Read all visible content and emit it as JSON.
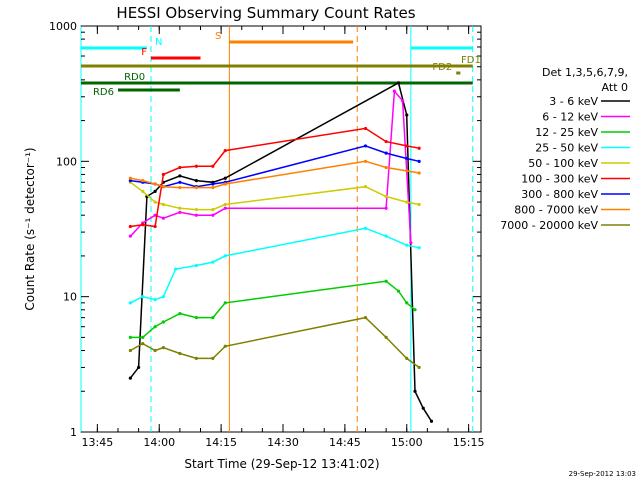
{
  "chart_data": {
    "type": "line",
    "title": "HESSI Observing Summary Count Rates",
    "xlabel": "Start Time (29-Sep-12 13:41:02)",
    "ylabel": "Count Rate (s⁻¹ detector⁻¹)",
    "y_scale": "log",
    "ylim": [
      1,
      1000
    ],
    "xlim": [
      "13:41:02",
      "15:18"
    ],
    "x_ticks": [
      "13:45",
      "14:00",
      "14:15",
      "14:30",
      "14:45",
      "15:00",
      "15:15"
    ],
    "y_ticks": [
      "1",
      "10",
      "100",
      "1000"
    ],
    "footer_stamp": "29-Sep-2012 13:03",
    "legend_header": [
      "Det 1,3,5,6,7,9,",
      "Att 0"
    ],
    "grid": false,
    "legend_position": "right",
    "series": [
      {
        "name": "3 - 6 keV",
        "color": "#000000",
        "x": [
          "13:53",
          "13:55",
          "13:57",
          "13:59",
          "14:01",
          "14:05",
          "14:09",
          "14:13",
          "14:16",
          "14:58",
          "15:00",
          "15:02",
          "15:04",
          "15:06"
        ],
        "values": [
          2.5,
          3,
          55,
          60,
          70,
          78,
          72,
          70,
          75,
          380,
          220,
          2,
          1.5,
          1.2
        ]
      },
      {
        "name": "6 - 12 keV",
        "color": "#ff00ff",
        "x": [
          "13:53",
          "13:56",
          "13:59",
          "14:01",
          "14:05",
          "14:09",
          "14:13",
          "14:16",
          "14:55",
          "14:57",
          "14:59",
          "15:01"
        ],
        "values": [
          28,
          35,
          40,
          38,
          42,
          40,
          40,
          45,
          45,
          330,
          280,
          25
        ]
      },
      {
        "name": "12 - 25 keV",
        "color": "#00cc00",
        "x": [
          "13:53",
          "13:56",
          "13:59",
          "14:01",
          "14:05",
          "14:09",
          "14:13",
          "14:16",
          "14:55",
          "14:58",
          "15:00",
          "15:02"
        ],
        "values": [
          5,
          5,
          6,
          6.5,
          7.5,
          7,
          7,
          9,
          13,
          11,
          9,
          8
        ]
      },
      {
        "name": "25 - 50 keV",
        "color": "#00ffff",
        "x": [
          "13:53",
          "13:56",
          "13:59",
          "14:01",
          "14:04",
          "14:09",
          "14:13",
          "14:16",
          "14:50",
          "14:55",
          "15:00",
          "15:03"
        ],
        "values": [
          9,
          10,
          9.5,
          10,
          16,
          17,
          18,
          20,
          32,
          28,
          24,
          23
        ]
      },
      {
        "name": "50 - 100 keV",
        "color": "#cccc00",
        "x": [
          "13:53",
          "13:56",
          "13:59",
          "14:01",
          "14:05",
          "14:09",
          "14:13",
          "14:16",
          "14:50",
          "14:55",
          "15:00",
          "15:03"
        ],
        "values": [
          70,
          60,
          50,
          48,
          45,
          44,
          44,
          48,
          65,
          55,
          50,
          48
        ]
      },
      {
        "name": "100 - 300 keV",
        "color": "#ff0000",
        "x": [
          "13:53",
          "13:56",
          "13:59",
          "14:01",
          "14:05",
          "14:09",
          "14:13",
          "14:16",
          "14:50",
          "14:55",
          "15:00",
          "15:03"
        ],
        "values": [
          33,
          34,
          33,
          80,
          90,
          92,
          92,
          120,
          175,
          140,
          130,
          125
        ]
      },
      {
        "name": "300 - 800 keV",
        "color": "#0000ff",
        "x": [
          "13:53",
          "13:56",
          "13:59",
          "14:01",
          "14:05",
          "14:09",
          "14:13",
          "14:16",
          "14:50",
          "14:55",
          "15:00",
          "15:03"
        ],
        "values": [
          72,
          70,
          68,
          65,
          70,
          65,
          68,
          70,
          130,
          115,
          105,
          100
        ]
      },
      {
        "name": "800 - 7000 keV",
        "color": "#ff8000",
        "x": [
          "13:53",
          "13:56",
          "13:59",
          "14:01",
          "14:05",
          "14:09",
          "14:13",
          "14:16",
          "14:50",
          "14:55",
          "15:00",
          "15:03"
        ],
        "values": [
          75,
          72,
          68,
          65,
          64,
          64,
          64,
          68,
          100,
          90,
          85,
          82
        ]
      },
      {
        "name": "7000 - 20000 keV",
        "color": "#808000",
        "x": [
          "13:53",
          "13:56",
          "13:59",
          "14:01",
          "14:05",
          "14:09",
          "14:13",
          "14:16",
          "14:50",
          "14:55",
          "15:00",
          "15:03"
        ],
        "values": [
          4,
          4.5,
          4,
          4.2,
          3.8,
          3.5,
          3.5,
          4.3,
          7,
          5,
          3.5,
          3
        ]
      }
    ],
    "flag_bars": [
      {
        "label": "N",
        "color": "#00ffff",
        "segments": [
          [
            "13:41:02",
            "13:57"
          ],
          [
            "15:01",
            "15:16"
          ]
        ]
      },
      {
        "label": "F",
        "color": "#ff0000",
        "segments": [
          [
            "13:58",
            "14:10"
          ]
        ]
      },
      {
        "label": "S",
        "color": "#ff8000",
        "segments": [
          [
            "14:17",
            "14:47"
          ]
        ]
      },
      {
        "label": "FD1",
        "color": "#808000",
        "segments": [
          [
            "13:41:02",
            "15:16"
          ]
        ]
      },
      {
        "label": "FD2",
        "color": "#808000",
        "segments": [
          [
            "15:12",
            "15:13"
          ]
        ]
      },
      {
        "label": "RD0",
        "color": "#006400",
        "segments": [
          [
            "13:41:02",
            "15:16"
          ]
        ]
      },
      {
        "label": "RD6",
        "color": "#006400",
        "segments": [
          [
            "13:50",
            "14:05"
          ]
        ]
      }
    ],
    "vertical_lines": [
      {
        "time": "13:41:02",
        "color": "#00ffff",
        "style": "solid"
      },
      {
        "time": "13:58",
        "color": "#00ffff",
        "style": "dashed"
      },
      {
        "time": "14:17",
        "color": "#ff8000",
        "style": "solid"
      },
      {
        "time": "14:48",
        "color": "#ff8000",
        "style": "dashed"
      },
      {
        "time": "15:01",
        "color": "#00ffff",
        "style": "solid"
      },
      {
        "time": "15:16",
        "color": "#00ffff",
        "style": "dashed"
      }
    ]
  }
}
